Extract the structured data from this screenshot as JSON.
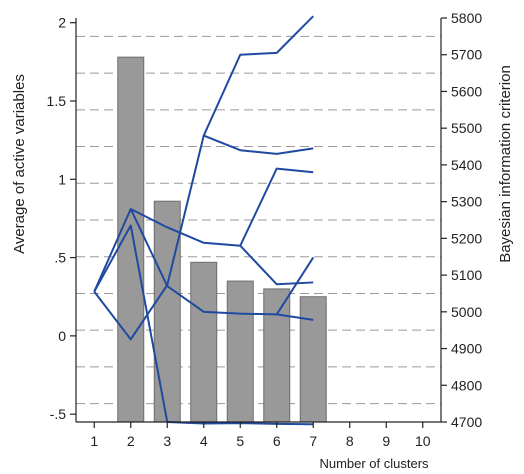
{
  "chart_data": {
    "type": "bar",
    "xlabel": "Number of clusters",
    "ylabel_left": "Average of active variables",
    "ylabel_right": "Bayesian information criterion",
    "categories": [
      "1",
      "2",
      "3",
      "4",
      "5",
      "6",
      "7",
      "8",
      "9",
      "10"
    ],
    "x_values": [
      1,
      2,
      3,
      4,
      5,
      6,
      7,
      8,
      9,
      10
    ],
    "xlim": [
      0.5,
      10.5
    ],
    "ylim_left": [
      -0.55,
      2.03
    ],
    "ylim_right": [
      4700,
      5800
    ],
    "left_ticks": [
      {
        "value": 2,
        "label": "2"
      },
      {
        "value": 1.5,
        "label": "1.5"
      },
      {
        "value": 1,
        "label": "1"
      },
      {
        "value": 0.5,
        "label": ".5"
      },
      {
        "value": 0,
        "label": "0"
      },
      {
        "value": -0.5,
        "label": "-.5"
      }
    ],
    "right_ticks": [
      {
        "value": 5800,
        "label": "5800"
      },
      {
        "value": 5700,
        "label": "5700"
      },
      {
        "value": 5600,
        "label": "5600"
      },
      {
        "value": 5500,
        "label": "5500"
      },
      {
        "value": 5400,
        "label": "5400"
      },
      {
        "value": 5300,
        "label": "5300"
      },
      {
        "value": 5200,
        "label": "5200"
      },
      {
        "value": 5100,
        "label": "5100"
      },
      {
        "value": 5000,
        "label": "5000"
      },
      {
        "value": 4900,
        "label": "4900"
      },
      {
        "value": 4800,
        "label": "4800"
      },
      {
        "value": 4700,
        "label": "4700"
      }
    ],
    "grid": true,
    "grid_values_right": [
      5750,
      5650,
      5550,
      5450,
      5350,
      5250,
      5150,
      5050,
      4950,
      4850,
      4750
    ],
    "bars": {
      "axis": "left",
      "color": "#999999",
      "x": [
        2,
        3,
        4,
        5,
        6,
        7
      ],
      "values": [
        1.78,
        0.86,
        0.47,
        0.35,
        0.3,
        0.25
      ]
    },
    "lines": {
      "axis": "right",
      "color": "#1f4aa0",
      "series": [
        {
          "x": [
            1,
            2,
            3,
            4,
            5,
            6,
            7
          ],
          "values": [
            5055,
            4925,
            5073,
            5480,
            5700,
            5705,
            5805
          ]
        },
        {
          "x": [
            4,
            5,
            6,
            7
          ],
          "values": [
            5480,
            5440,
            5430,
            5445
          ]
        },
        {
          "x": [
            1,
            2,
            3,
            4,
            5,
            6,
            7
          ],
          "values": [
            5055,
            5280,
            5070,
            5000,
            4995,
            4993,
            4978
          ]
        },
        {
          "x": [
            2,
            3,
            4,
            5,
            6,
            7
          ],
          "values": [
            5280,
            5230,
            5188,
            5180,
            5075,
            5080
          ]
        },
        {
          "x": [
            5,
            6,
            7
          ],
          "values": [
            5180,
            5390,
            5380
          ]
        },
        {
          "x": [
            6,
            7
          ],
          "values": [
            4993,
            5148
          ]
        },
        {
          "x": [
            1,
            2,
            3,
            4,
            5,
            6,
            7
          ],
          "values": [
            5055,
            5235,
            4700,
            4696,
            4697,
            4695,
            4694
          ]
        }
      ]
    }
  }
}
